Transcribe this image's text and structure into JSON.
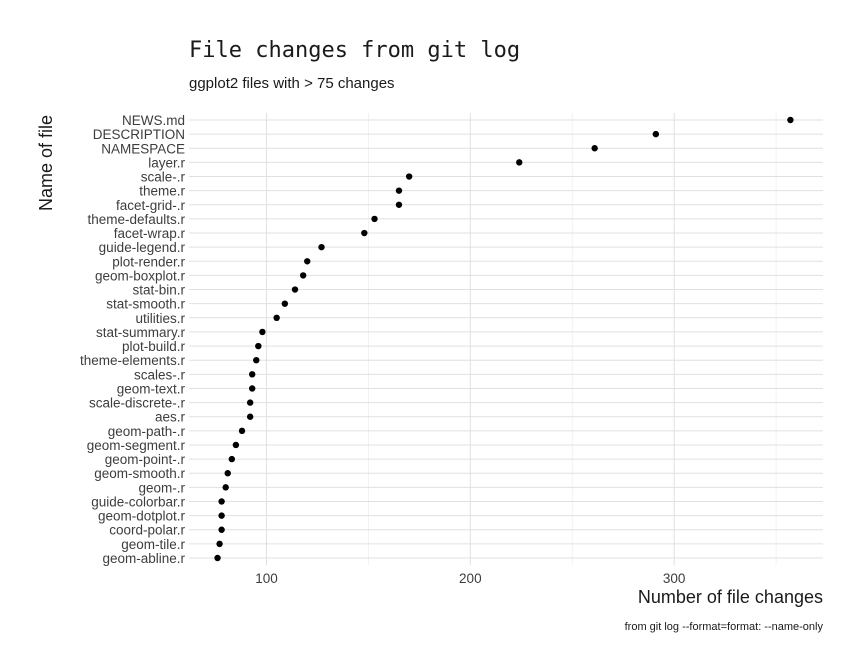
{
  "chart_data": {
    "type": "scatter",
    "title": "File changes from git log",
    "subtitle": "ggplot2 files with > 75 changes",
    "xlabel": "Number of file changes",
    "ylabel": "Name of file",
    "caption": "from git log --format=format: --name-only",
    "xlim": [
      62,
      373
    ],
    "x_ticks": [
      100,
      200,
      300
    ],
    "x_tick_labels": [
      "100",
      "200",
      "300"
    ],
    "grid": true,
    "categories": [
      "NEWS.md",
      "DESCRIPTION",
      "NAMESPACE",
      "layer.r",
      "scale-.r",
      "theme.r",
      "facet-grid-.r",
      "theme-defaults.r",
      "facet-wrap.r",
      "guide-legend.r",
      "plot-render.r",
      "geom-boxplot.r",
      "stat-bin.r",
      "stat-smooth.r",
      "utilities.r",
      "stat-summary.r",
      "plot-build.r",
      "theme-elements.r",
      "scales-.r",
      "geom-text.r",
      "scale-discrete-.r",
      "aes.r",
      "geom-path-.r",
      "geom-segment.r",
      "geom-point-.r",
      "geom-smooth.r",
      "geom-.r",
      "guide-colorbar.r",
      "geom-dotplot.r",
      "coord-polar.r",
      "geom-tile.r",
      "geom-abline.r"
    ],
    "values": [
      357,
      291,
      261,
      224,
      170,
      165,
      165,
      153,
      148,
      127,
      120,
      118,
      114,
      109,
      105,
      98,
      96,
      95,
      93,
      93,
      92,
      92,
      88,
      85,
      83,
      81,
      80,
      78,
      78,
      78,
      77,
      76
    ]
  }
}
